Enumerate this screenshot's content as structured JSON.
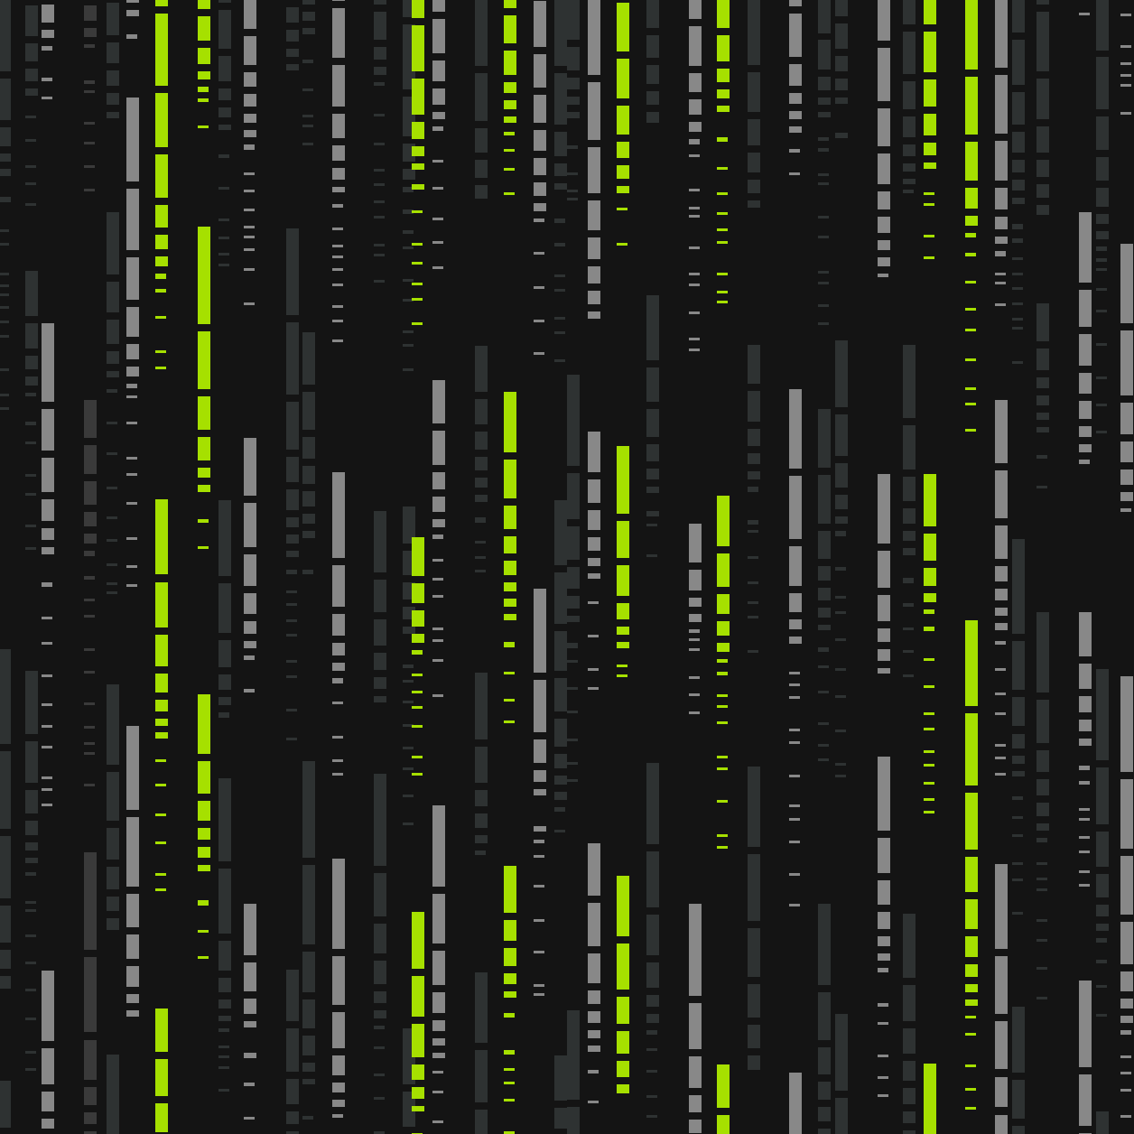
{
  "palette": {
    "background": "#141414",
    "green": "#a6e000",
    "gray": "#888888",
    "dark": "#2e3232",
    "dim": "#3a3a3a"
  },
  "columns": [
    {
      "tone": "dark"
    },
    {
      "tone": "dark"
    },
    {
      "tone": "gray"
    },
    {
      "tone": "dim"
    },
    {
      "tone": "dark"
    },
    {
      "tone": "gray"
    },
    {
      "tone": "green"
    },
    {
      "tone": "green"
    },
    {
      "tone": "dark"
    },
    {
      "tone": "gray"
    },
    {
      "tone": "dark"
    },
    {
      "tone": "dark"
    },
    {
      "tone": "gray"
    },
    {
      "tone": "dark"
    },
    {
      "tone": "dark"
    },
    {
      "tone": "green"
    },
    {
      "tone": "gray"
    },
    {
      "tone": "dark"
    },
    {
      "tone": "green"
    },
    {
      "tone": "gray"
    },
    {
      "tone": "dark"
    },
    {
      "tone": "dark"
    },
    {
      "tone": "gray"
    },
    {
      "tone": "green"
    },
    {
      "tone": "dark"
    },
    {
      "tone": "gray"
    },
    {
      "tone": "green"
    },
    {
      "tone": "dark"
    },
    {
      "tone": "gray"
    },
    {
      "tone": "dark"
    },
    {
      "tone": "dark"
    },
    {
      "tone": "gray"
    },
    {
      "tone": "dark"
    },
    {
      "tone": "green"
    },
    {
      "tone": "green"
    },
    {
      "tone": "gray"
    },
    {
      "tone": "dark"
    },
    {
      "tone": "dark"
    },
    {
      "tone": "gray"
    },
    {
      "tone": "dark"
    },
    {
      "tone": "gray"
    }
  ]
}
